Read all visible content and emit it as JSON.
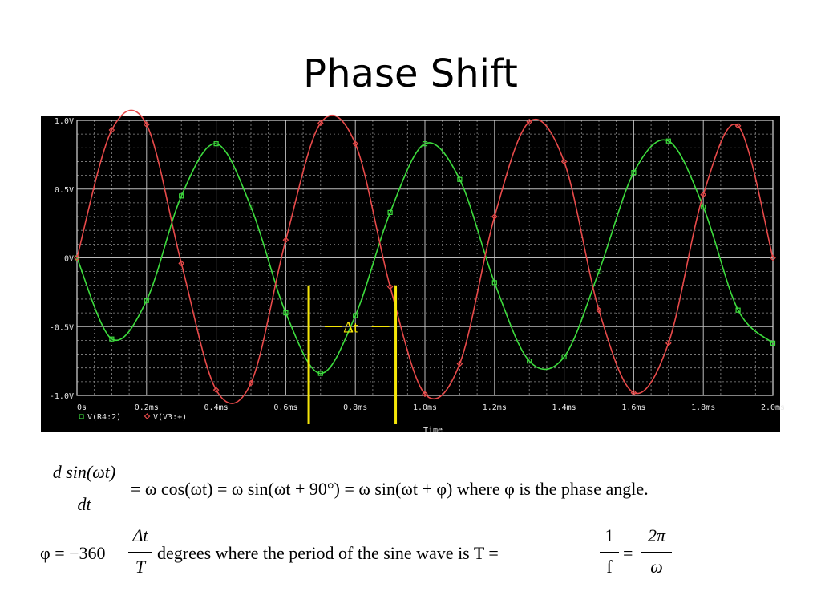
{
  "slide": {
    "title": "Phase Shift"
  },
  "chart_data": {
    "type": "line",
    "xlabel": "Time",
    "ylabel": "",
    "xlim": [
      0,
      2.0
    ],
    "ylim": [
      -1.0,
      1.0
    ],
    "grid": true,
    "x_ticks": [
      "0s",
      "0.2ms",
      "0.4ms",
      "0.6ms",
      "0.8ms",
      "1.0ms",
      "1.2ms",
      "1.4ms",
      "1.6ms",
      "1.8ms",
      "2.0ms"
    ],
    "x_tick_values": [
      0,
      0.2,
      0.4,
      0.6,
      0.8,
      1.0,
      1.2,
      1.4,
      1.6,
      1.8,
      2.0
    ],
    "y_ticks": [
      "1.0V",
      "0.5V",
      "0V",
      "-0.5V",
      "-1.0V"
    ],
    "y_tick_values": [
      1.0,
      0.5,
      0,
      -0.5,
      -1.0
    ],
    "legend_position": "bottom-left",
    "series": [
      {
        "name": "V(R4:2)",
        "color": "#3ddc3d",
        "marker": "square",
        "x": [
          0.0,
          0.1,
          0.2,
          0.3,
          0.4,
          0.5,
          0.6,
          0.7,
          0.8,
          0.9,
          1.0,
          1.1,
          1.2,
          1.3,
          1.4,
          1.5,
          1.6,
          1.7,
          1.8,
          1.9,
          2.0
        ],
        "values": [
          0.0,
          -0.59,
          -0.31,
          0.45,
          0.83,
          0.37,
          -0.4,
          -0.84,
          -0.42,
          0.33,
          0.83,
          0.57,
          -0.18,
          -0.75,
          -0.72,
          -0.1,
          0.62,
          0.85,
          0.37,
          -0.38,
          -0.62
        ]
      },
      {
        "name": "V(V3:+)",
        "color": "#e84a4a",
        "marker": "diamond",
        "x": [
          0.0,
          0.1,
          0.2,
          0.3,
          0.4,
          0.5,
          0.6,
          0.7,
          0.8,
          0.9,
          1.0,
          1.1,
          1.2,
          1.3,
          1.4,
          1.5,
          1.6,
          1.7,
          1.8,
          1.9,
          2.0
        ],
        "values": [
          0.0,
          0.93,
          0.97,
          -0.04,
          -0.96,
          -0.91,
          0.13,
          0.98,
          0.83,
          -0.21,
          -0.99,
          -0.77,
          0.3,
          0.99,
          0.7,
          -0.38,
          -0.98,
          -0.62,
          0.46,
          0.96,
          0.0
        ]
      }
    ],
    "annotation": {
      "label": "Δt",
      "x_start": 0.666,
      "x_end": 0.916,
      "y_level": -0.5,
      "color": "#f5e609"
    }
  },
  "equations": {
    "eq1": {
      "numerator": "d sin(ωt)",
      "denominator": "dt",
      "rhs": "= ω cos(ωt) = ω sin(ωt + 90°) = ω sin(ωt + φ) where φ  is the phase angle."
    },
    "eq2": {
      "lhs": "φ = −360",
      "frac_num": "Δt",
      "frac_den": "T",
      "middle": "degrees where the period of  the sine wave  is T =",
      "frac2_num": "1",
      "frac2_den": "f",
      "equals": "=",
      "frac3_num": "2π",
      "frac3_den": "ω"
    }
  }
}
